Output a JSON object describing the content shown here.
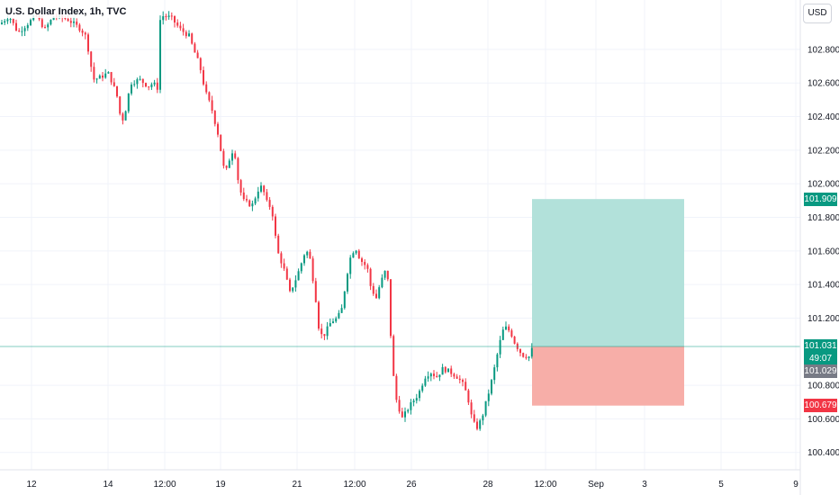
{
  "header": {
    "symbol_title": "U.S. Dollar Index, 1h, TVC"
  },
  "currency_button": {
    "label": "USD"
  },
  "price_axis": {
    "ticks": [
      "102.800",
      "102.600",
      "102.400",
      "102.200",
      "102.000",
      "101.800",
      "101.600",
      "101.400",
      "101.200",
      "100.800",
      "100.600",
      "100.400"
    ]
  },
  "time_axis": {
    "ticks": [
      "12",
      "14",
      "12:00",
      "19",
      "21",
      "12:00",
      "26",
      "28",
      "12:00",
      "Sep",
      "3",
      "5",
      "9"
    ]
  },
  "price_tags": {
    "target": "101.909",
    "last_price": "101.031",
    "countdown": "49:07",
    "bid": "101.029",
    "stop": "100.679"
  },
  "chart_data": {
    "type": "candlestick",
    "y_range": [
      100.3,
      103.0
    ],
    "last_price": 101.031,
    "position": {
      "entry": 101.031,
      "target": 101.909,
      "stop": 100.679
    },
    "colors": {
      "up": "#089981",
      "down": "#f23645",
      "profit_zone": "#b2e1da",
      "loss_zone": "#f7aea8",
      "tag_green": "#089981",
      "tag_red": "#f23645",
      "tag_gray": "#787b86",
      "last_line": "#089981"
    },
    "price_path": [
      [
        0,
        102.95
      ],
      [
        10,
        103.0
      ],
      [
        20,
        102.9
      ],
      [
        30,
        102.95
      ],
      [
        40,
        103.0
      ],
      [
        50,
        102.92
      ],
      [
        60,
        103.0
      ],
      [
        75,
        102.98
      ],
      [
        90,
        102.92
      ],
      [
        95,
        102.88
      ],
      [
        100,
        102.75
      ],
      [
        103,
        102.62
      ],
      [
        110,
        102.63
      ],
      [
        120,
        102.66
      ],
      [
        125,
        102.6
      ],
      [
        130,
        102.52
      ],
      [
        135,
        102.36
      ],
      [
        140,
        102.45
      ],
      [
        145,
        102.6
      ],
      [
        155,
        102.62
      ],
      [
        165,
        102.58
      ],
      [
        170,
        102.6
      ],
      [
        175,
        102.57
      ],
      [
        176,
        102.95
      ],
      [
        180,
        103.0
      ],
      [
        190,
        102.99
      ],
      [
        200,
        102.92
      ],
      [
        210,
        102.88
      ],
      [
        215,
        102.8
      ],
      [
        222,
        102.7
      ],
      [
        228,
        102.55
      ],
      [
        235,
        102.45
      ],
      [
        242,
        102.3
      ],
      [
        250,
        102.05
      ],
      [
        255,
        102.15
      ],
      [
        260,
        102.22
      ],
      [
        265,
        102.0
      ],
      [
        270,
        101.9
      ],
      [
        280,
        101.87
      ],
      [
        288,
        101.98
      ],
      [
        292,
        101.98
      ],
      [
        295,
        101.9
      ],
      [
        302,
        101.85
      ],
      [
        308,
        101.6
      ],
      [
        315,
        101.5
      ],
      [
        322,
        101.35
      ],
      [
        330,
        101.45
      ],
      [
        338,
        101.58
      ],
      [
        343,
        101.6
      ],
      [
        350,
        101.35
      ],
      [
        355,
        101.1
      ],
      [
        360,
        101.1
      ],
      [
        368,
        101.18
      ],
      [
        375,
        101.2
      ],
      [
        380,
        101.26
      ],
      [
        385,
        101.45
      ],
      [
        390,
        101.58
      ],
      [
        395,
        101.62
      ],
      [
        400,
        101.55
      ],
      [
        408,
        101.5
      ],
      [
        412,
        101.38
      ],
      [
        418,
        101.32
      ],
      [
        422,
        101.4
      ],
      [
        428,
        101.48
      ],
      [
        432,
        101.4
      ],
      [
        435,
        100.95
      ],
      [
        440,
        100.72
      ],
      [
        447,
        100.6
      ],
      [
        452,
        100.65
      ],
      [
        458,
        100.7
      ],
      [
        465,
        100.75
      ],
      [
        472,
        100.85
      ],
      [
        478,
        100.88
      ],
      [
        485,
        100.85
      ],
      [
        492,
        100.9
      ],
      [
        500,
        100.88
      ],
      [
        508,
        100.85
      ],
      [
        515,
        100.8
      ],
      [
        520,
        100.72
      ],
      [
        525,
        100.58
      ],
      [
        530,
        100.55
      ],
      [
        535,
        100.6
      ],
      [
        540,
        100.7
      ],
      [
        545,
        100.8
      ],
      [
        550,
        100.92
      ],
      [
        555,
        101.05
      ],
      [
        560,
        101.15
      ],
      [
        567,
        101.12
      ],
      [
        572,
        101.05
      ],
      [
        580,
        100.98
      ],
      [
        588,
        100.97
      ],
      [
        592,
        101.03
      ]
    ]
  }
}
